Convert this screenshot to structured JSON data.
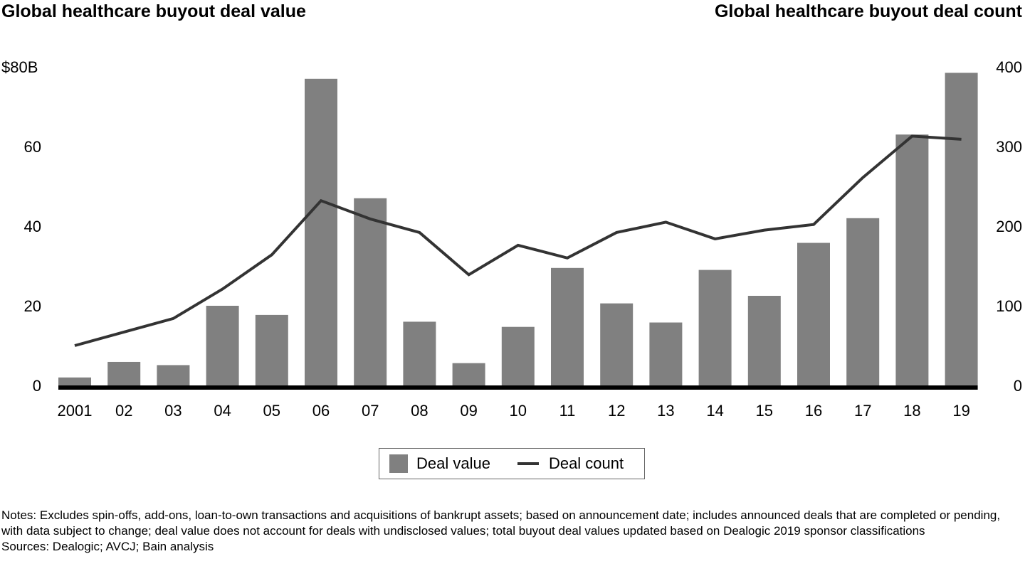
{
  "chart_data": {
    "type": "bar",
    "title_left": "Global healthcare buyout deal value",
    "title_right": "Global healthcare buyout deal count",
    "categories": [
      "2001",
      "02",
      "03",
      "04",
      "05",
      "06",
      "07",
      "08",
      "09",
      "10",
      "11",
      "12",
      "13",
      "14",
      "15",
      "16",
      "17",
      "18",
      "19"
    ],
    "series": [
      {
        "name": "Deal value",
        "type": "bar",
        "axis": "left",
        "color": "#808080",
        "values": [
          2,
          5.9,
          5.1,
          20,
          17.7,
          77,
          47,
          16,
          5.6,
          14.7,
          29.5,
          20.6,
          15.8,
          29,
          22.5,
          35.8,
          42,
          63,
          78.5
        ]
      },
      {
        "name": "Deal count",
        "type": "line",
        "axis": "right",
        "color": "#333333",
        "values": [
          50,
          67,
          84,
          121,
          164,
          232,
          209,
          192,
          139,
          176,
          160,
          192,
          205,
          184,
          195,
          202,
          261,
          313,
          309
        ]
      }
    ],
    "y_left": {
      "ylim": [
        0,
        80
      ],
      "ticks": [
        0,
        20,
        40,
        60,
        80
      ],
      "tick_labels": [
        "0",
        "20",
        "40",
        "60",
        "$80B"
      ]
    },
    "y_right": {
      "ylim": [
        0,
        400
      ],
      "ticks": [
        0,
        100,
        200,
        300,
        400
      ],
      "tick_labels": [
        "0",
        "100",
        "200",
        "300",
        "400"
      ]
    },
    "xlabel": "",
    "grid": false,
    "legend": {
      "position": "bottom-center",
      "items": [
        "Deal value",
        "Deal count"
      ]
    }
  },
  "notes": "Notes: Excludes spin-offs, add-ons, loan-to-own transactions and acquisitions of bankrupt assets; based on announcement date; includes announced deals that are completed or pending, with data subject to change; deal value does not account for deals with undisclosed values; total buyout deal values updated based on Dealogic 2019 sponsor classifications",
  "sources": "Sources: Dealogic; AVCJ; Bain analysis"
}
